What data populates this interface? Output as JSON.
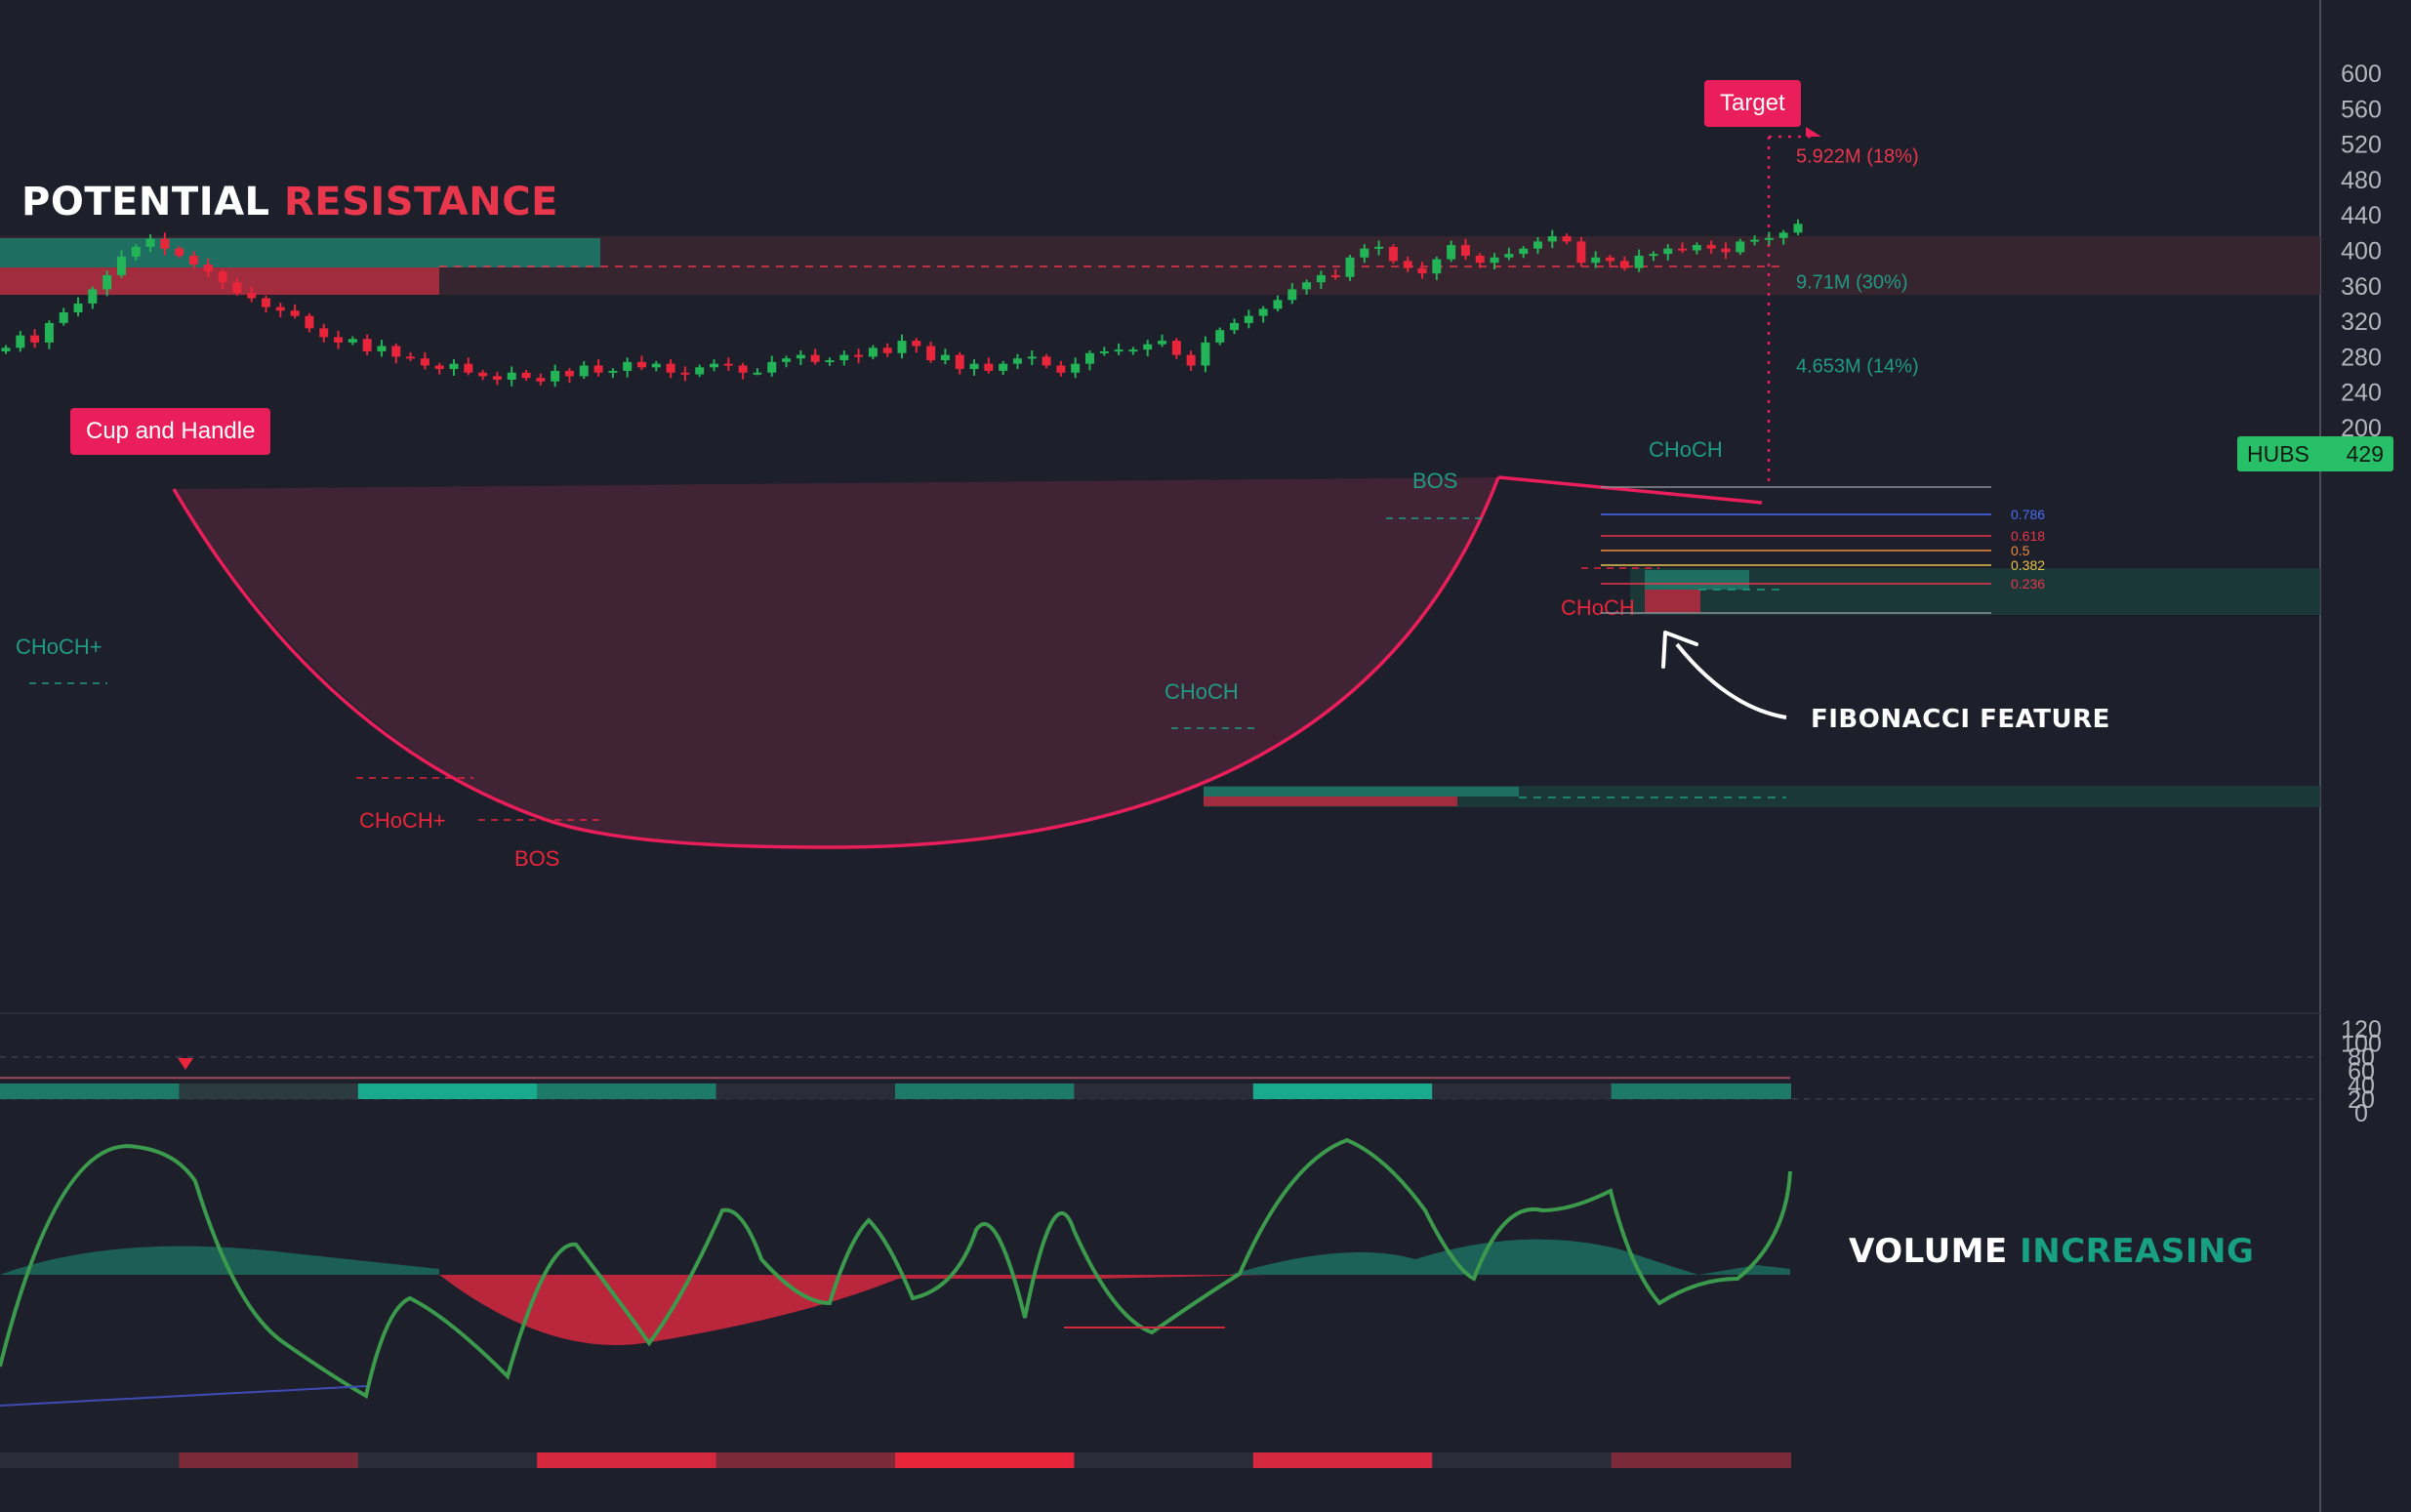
{
  "headlines": {
    "resistance_word1": "POTENTIAL",
    "resistance_word2": "RESISTANCE",
    "fibonacci": "FIBONACCI FEATURE",
    "volume_word1": "VOLUME",
    "volume_word2": "INCREASING"
  },
  "labels": {
    "pattern": "Cup and Handle",
    "target": "Target",
    "ticker_symbol": "HUBS",
    "ticker_price": "429"
  },
  "colors": {
    "background": "#1d1f2b",
    "bull": "#22b456",
    "bear": "#e8253a",
    "accent": "#e91e5a",
    "teal": "#1f9b84",
    "resistance_text": "#e8364c",
    "volume_text": "#18a082",
    "price_tag": "#27c068"
  },
  "chart_data": [
    {
      "type": "candlestick",
      "ylim": [
        180,
        620
      ],
      "y_ticks": [
        600,
        560,
        520,
        480,
        440,
        400,
        360,
        320,
        280,
        240,
        200
      ],
      "current_price": 429,
      "structure_labels": [
        {
          "text": "CHoCH+",
          "price": 318,
          "color": "#1f9b84"
        },
        {
          "text": "CHoCH+",
          "price": 270,
          "color": "#e8253a"
        },
        {
          "text": "BOS",
          "price": 250,
          "color": "#e8253a"
        },
        {
          "text": "CHoCH",
          "price": 318,
          "color": "#1f9b84"
        },
        {
          "text": "BOS",
          "price": 406,
          "color": "#1f9b84"
        },
        {
          "text": "CHoCH",
          "price": 432,
          "color": "#1f9b84"
        },
        {
          "text": "CHoCH",
          "price": 360,
          "color": "#e8253a"
        }
      ],
      "volume_profile_labels": [
        {
          "text": "5.922M (18%)",
          "price": 508
        },
        {
          "text": "9.71M (30%)",
          "price": 366
        },
        {
          "text": "4.653M (14%)",
          "price": 271
        }
      ],
      "fibonacci_levels": [
        "0.786",
        "0.618",
        "0.5",
        "0.382",
        "0.236"
      ],
      "fibonacci_colors": [
        "#4a6cf7",
        "#e8364c",
        "#f08a3c",
        "#e8c04a",
        "#e8364c"
      ],
      "closes": [
        290,
        304,
        296,
        318,
        330,
        340,
        356,
        372,
        393,
        404,
        413,
        402,
        394,
        384,
        376,
        364,
        352,
        346,
        336,
        332,
        326,
        312,
        302,
        296,
        300,
        286,
        292,
        280,
        278,
        270,
        266,
        272,
        262,
        258,
        254,
        262,
        256,
        252,
        264,
        258,
        270,
        262,
        264,
        274,
        268,
        272,
        262,
        260,
        268,
        272,
        270,
        262,
        262,
        274,
        278,
        282,
        274,
        276,
        282,
        280,
        290,
        284,
        298,
        292,
        276,
        282,
        266,
        272,
        264,
        272,
        278,
        280,
        270,
        262,
        272,
        284,
        286,
        288,
        288,
        294,
        298,
        282,
        270,
        296,
        310,
        318,
        326,
        334,
        344,
        356,
        364,
        372,
        370,
        392,
        402,
        404,
        388,
        380,
        374,
        390,
        406,
        394,
        386,
        392,
        396,
        402,
        410,
        416,
        410,
        386,
        392,
        388,
        380,
        394,
        396,
        402,
        400,
        406,
        402,
        398,
        410,
        412,
        414,
        420,
        430
      ],
      "oscillator": {
        "ylim": [
          -5,
          125
        ],
        "y_ticks": [
          120,
          100,
          80,
          60,
          40,
          20,
          0
        ],
        "levels": [
          80,
          50,
          20
        ]
      }
    }
  ]
}
